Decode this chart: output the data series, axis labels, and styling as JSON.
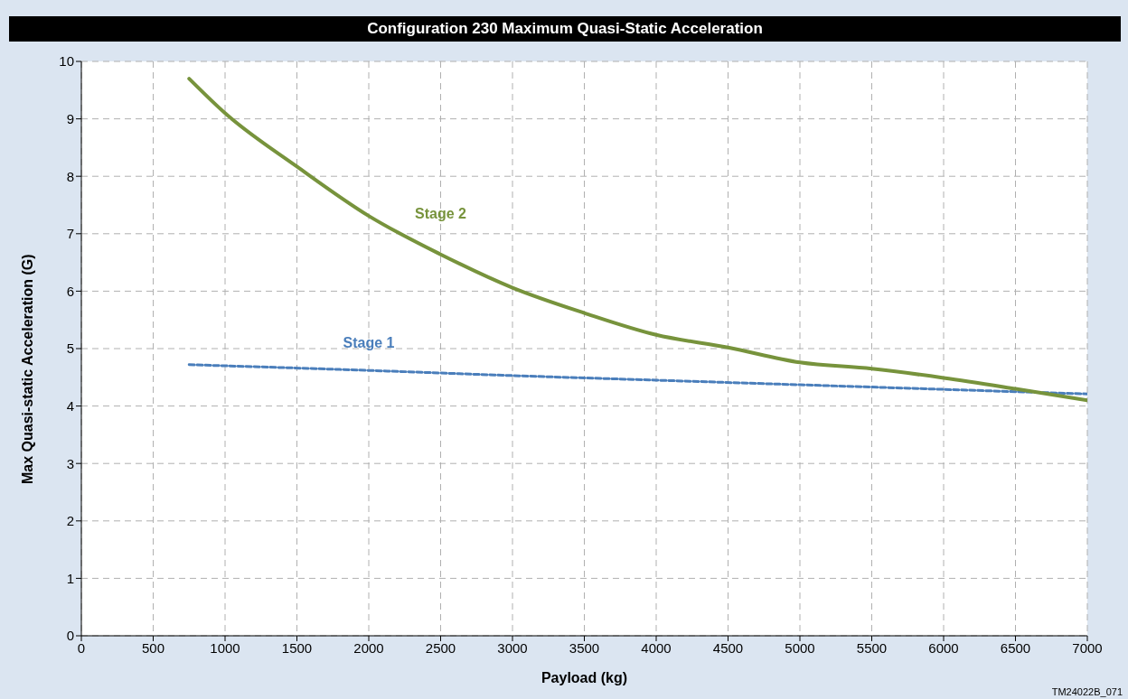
{
  "chart_data": {
    "type": "line",
    "title": "Configuration 230 Maximum Quasi-Static Acceleration",
    "xlabel": "Payload (kg)",
    "ylabel": "Max Quasi-static Acceleration (G)",
    "series": [
      {
        "name": "Stage 1",
        "color": "#4a7ebb",
        "line_style": "dashed",
        "x": [
          750,
          2000,
          3000,
          4000,
          5000,
          6000,
          7000
        ],
        "values": [
          4.72,
          4.62,
          4.53,
          4.45,
          4.37,
          4.29,
          4.21
        ]
      },
      {
        "name": "Stage 2",
        "color": "#77933c",
        "line_style": "solid",
        "x": [
          750,
          1000,
          1500,
          2000,
          2500,
          3000,
          3500,
          4000,
          4500,
          5000,
          5500,
          6000,
          6500,
          7000
        ],
        "values": [
          9.7,
          9.1,
          8.17,
          7.31,
          6.64,
          6.06,
          5.62,
          5.24,
          5.02,
          4.76,
          4.65,
          4.49,
          4.3,
          4.1
        ]
      }
    ],
    "xlim": [
      0,
      7000
    ],
    "xticks": [
      0,
      500,
      1000,
      1500,
      2000,
      2500,
      3000,
      3500,
      4000,
      4500,
      5000,
      5500,
      6000,
      6500,
      7000
    ],
    "ylim": [
      0,
      10
    ],
    "yticks": [
      0,
      1,
      2,
      3,
      4,
      5,
      6,
      7,
      8,
      9,
      10
    ],
    "grid": true,
    "legend": false,
    "marker": "none",
    "annotations": [
      "TM24022B_071"
    ]
  }
}
